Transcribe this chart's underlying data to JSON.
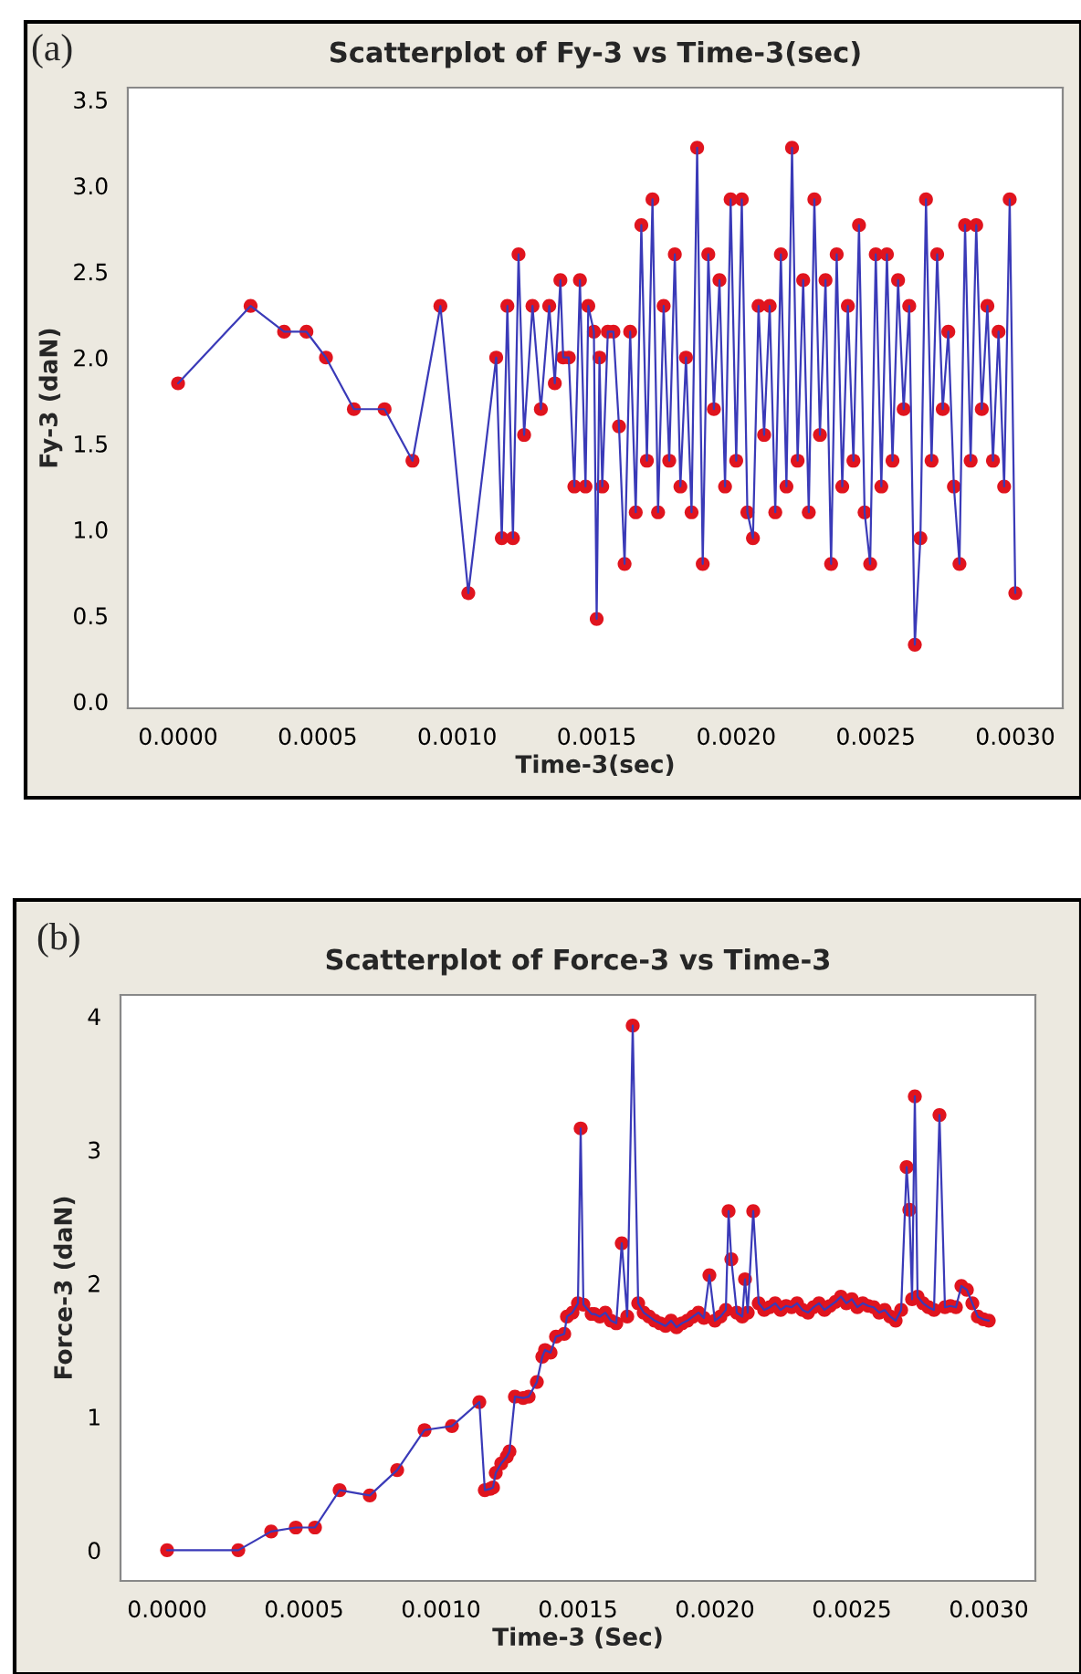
{
  "chart_data": [
    {
      "type": "line",
      "title": "Scatterplot of Fy-3 vs Time-3(sec)",
      "xlabel": "Time-3(sec)",
      "ylabel": "Fy-3 (daN)",
      "annotations": [
        "(a)"
      ],
      "x": [
        0,
        0.00026,
        0.00038,
        0.00046,
        0.00053,
        0.00063,
        0.00074,
        0.00084,
        0.00094,
        0.00104,
        0.00114,
        0.00116,
        0.00118,
        0.0012,
        0.00122,
        0.00124,
        0.00127,
        0.0013,
        0.00133,
        0.00135,
        0.00137,
        0.00138,
        0.0014,
        0.00142,
        0.00144,
        0.00146,
        0.00147,
        0.00149,
        0.0015,
        0.00151,
        0.00152,
        0.00154,
        0.00156,
        0.00158,
        0.0016,
        0.00162,
        0.00164,
        0.00166,
        0.00168,
        0.0017,
        0.00172,
        0.00174,
        0.00176,
        0.00178,
        0.0018,
        0.00182,
        0.00184,
        0.00186,
        0.00188,
        0.0019,
        0.00192,
        0.00194,
        0.00196,
        0.00198,
        0.002,
        0.00202,
        0.00204,
        0.00206,
        0.00208,
        0.0021,
        0.00212,
        0.00214,
        0.00216,
        0.00218,
        0.0022,
        0.00222,
        0.00224,
        0.00226,
        0.00228,
        0.0023,
        0.00232,
        0.00234,
        0.00236,
        0.00238,
        0.0024,
        0.00242,
        0.00244,
        0.00246,
        0.00248,
        0.0025,
        0.00252,
        0.00254,
        0.00256,
        0.00258,
        0.0026,
        0.00262,
        0.00264,
        0.00266,
        0.00268,
        0.0027,
        0.00272,
        0.00274,
        0.00276,
        0.00278,
        0.0028,
        0.00282,
        0.00284,
        0.00286,
        0.00288,
        0.0029,
        0.00292,
        0.00294,
        0.00296,
        0.00298,
        0.003
      ],
      "series": [
        {
          "type": "line",
          "color": "#3a3ab8",
          "marker": "none",
          "values": [
            1.85,
            2.3,
            2.15,
            2.15,
            2.0,
            1.7,
            1.7,
            1.4,
            2.3,
            0.63,
            2.0,
            0.95,
            2.3,
            0.95,
            2.6,
            1.55,
            2.3,
            1.7,
            2.3,
            1.85,
            2.45,
            2.0,
            2.0,
            1.25,
            2.45,
            1.25,
            2.3,
            2.15,
            0.48,
            2.0,
            1.25,
            2.15,
            2.15,
            1.6,
            0.8,
            2.15,
            1.1,
            2.77,
            1.4,
            2.92,
            1.1,
            2.3,
            1.4,
            2.6,
            1.25,
            2.0,
            1.1,
            3.22,
            0.8,
            2.6,
            1.7,
            2.45,
            1.25,
            2.92,
            1.4,
            2.92,
            1.1,
            0.95,
            2.3,
            1.55,
            2.3,
            1.1,
            2.6,
            1.25,
            3.22,
            1.4,
            2.45,
            1.1,
            2.92,
            1.55,
            2.45,
            0.8,
            2.6,
            1.25,
            2.3,
            1.4,
            2.77,
            1.1,
            0.8,
            2.6,
            1.25,
            2.6,
            1.4,
            2.45,
            1.7,
            2.3,
            0.33,
            0.95,
            2.92,
            1.4,
            2.6,
            1.7,
            2.15,
            1.25,
            0.8,
            2.77,
            1.4,
            2.77,
            1.7,
            2.3,
            1.4,
            2.15,
            1.25,
            2.92,
            0.63
          ]
        },
        {
          "type": "scatter",
          "color": "#e0141e",
          "marker": "circle",
          "values": [
            1.85,
            2.3,
            2.15,
            2.15,
            2.0,
            1.7,
            1.7,
            1.4,
            2.3,
            0.63,
            2.0,
            0.95,
            2.3,
            0.95,
            2.6,
            1.55,
            2.3,
            1.7,
            2.3,
            1.85,
            2.45,
            2.0,
            2.0,
            1.25,
            2.45,
            1.25,
            2.3,
            2.15,
            0.48,
            2.0,
            1.25,
            2.15,
            2.15,
            1.6,
            0.8,
            2.15,
            1.1,
            2.77,
            1.4,
            2.92,
            1.1,
            2.3,
            1.4,
            2.6,
            1.25,
            2.0,
            1.1,
            3.22,
            0.8,
            2.6,
            1.7,
            2.45,
            1.25,
            2.92,
            1.4,
            2.92,
            1.1,
            0.95,
            2.3,
            1.55,
            2.3,
            1.1,
            2.6,
            1.25,
            3.22,
            1.4,
            2.45,
            1.1,
            2.92,
            1.55,
            2.45,
            0.8,
            2.6,
            1.25,
            2.3,
            1.4,
            2.77,
            1.1,
            0.8,
            2.6,
            1.25,
            2.6,
            1.4,
            2.45,
            1.7,
            2.3,
            0.33,
            0.95,
            2.92,
            1.4,
            2.6,
            1.7,
            2.15,
            1.25,
            0.8,
            2.77,
            1.4,
            2.77,
            1.7,
            2.3,
            1.4,
            2.15,
            1.25,
            2.92,
            0.63
          ]
        }
      ],
      "xlim": [
        -0.00018,
        0.00317
      ],
      "ylim": [
        -0.04,
        3.57
      ],
      "xticks": [
        {
          "value": 0,
          "label": "0.0000"
        },
        {
          "value": 0.0005,
          "label": "0.0005"
        },
        {
          "value": 0.001,
          "label": "0.0010"
        },
        {
          "value": 0.0015,
          "label": "0.0015"
        },
        {
          "value": 0.002,
          "label": "0.0020"
        },
        {
          "value": 0.0025,
          "label": "0.0025"
        },
        {
          "value": 0.003,
          "label": "0.0030"
        }
      ],
      "yticks": [
        {
          "value": 0,
          "label": "0.0"
        },
        {
          "value": 0.5,
          "label": "0.5"
        },
        {
          "value": 1,
          "label": "1.0"
        },
        {
          "value": 1.5,
          "label": "1.5"
        },
        {
          "value": 2,
          "label": "2.0"
        },
        {
          "value": 2.5,
          "label": "2.5"
        },
        {
          "value": 3,
          "label": "3.0"
        },
        {
          "value": 3.5,
          "label": "3.5"
        }
      ],
      "grid": false,
      "legend": false
    },
    {
      "type": "line",
      "title": "Scatterplot of Force-3 vs Time-3",
      "xlabel": "Time-3 (Sec)",
      "ylabel": "Force-3 (daN)",
      "annotations": [
        "(b)"
      ],
      "x": [
        0,
        0.00026,
        0.00038,
        0.00047,
        0.00054,
        0.00063,
        0.00074,
        0.00084,
        0.00094,
        0.00104,
        0.00114,
        0.00116,
        0.00118,
        0.00119,
        0.0012,
        0.00122,
        0.00124,
        0.00125,
        0.00127,
        0.0013,
        0.00132,
        0.00135,
        0.00137,
        0.00138,
        0.0014,
        0.00142,
        0.00145,
        0.00146,
        0.00148,
        0.0015,
        0.00151,
        0.00152,
        0.00155,
        0.00156,
        0.00158,
        0.0016,
        0.00162,
        0.00164,
        0.00166,
        0.00168,
        0.0017,
        0.00172,
        0.00174,
        0.00176,
        0.00178,
        0.0018,
        0.00182,
        0.00184,
        0.00186,
        0.00188,
        0.0019,
        0.00192,
        0.00194,
        0.00196,
        0.00198,
        0.002,
        0.00202,
        0.00204,
        0.00205,
        0.00206,
        0.00208,
        0.0021,
        0.00211,
        0.00212,
        0.00214,
        0.00216,
        0.00218,
        0.0022,
        0.00222,
        0.00224,
        0.00226,
        0.00228,
        0.0023,
        0.00232,
        0.00234,
        0.00236,
        0.00238,
        0.0024,
        0.00242,
        0.00244,
        0.00246,
        0.00248,
        0.0025,
        0.00252,
        0.00254,
        0.00256,
        0.00258,
        0.0026,
        0.00262,
        0.00264,
        0.00266,
        0.00268,
        0.0027,
        0.00271,
        0.00272,
        0.00273,
        0.00274,
        0.00276,
        0.00278,
        0.0028,
        0.00282,
        0.00284,
        0.00286,
        0.00288,
        0.0029,
        0.00292,
        0.00294,
        0.00296,
        0.00298,
        0.003
      ],
      "series": [
        {
          "type": "line",
          "color": "#3a3ab8",
          "marker": "none",
          "values": [
            0,
            0,
            0.14,
            0.17,
            0.17,
            0.45,
            0.41,
            0.6,
            0.9,
            0.93,
            1.11,
            0.45,
            0.46,
            0.47,
            0.58,
            0.65,
            0.7,
            0.74,
            1.15,
            1.14,
            1.15,
            1.26,
            1.45,
            1.5,
            1.48,
            1.6,
            1.62,
            1.75,
            1.78,
            1.85,
            3.16,
            1.84,
            1.77,
            1.77,
            1.75,
            1.78,
            1.72,
            1.7,
            2.3,
            1.75,
            3.93,
            1.85,
            1.78,
            1.75,
            1.72,
            1.7,
            1.68,
            1.72,
            1.67,
            1.7,
            1.72,
            1.75,
            1.78,
            1.74,
            2.06,
            1.72,
            1.75,
            1.8,
            2.54,
            2.18,
            1.78,
            1.75,
            2.03,
            1.78,
            2.54,
            1.85,
            1.8,
            1.82,
            1.85,
            1.8,
            1.83,
            1.82,
            1.85,
            1.8,
            1.78,
            1.82,
            1.85,
            1.8,
            1.83,
            1.86,
            1.9,
            1.85,
            1.88,
            1.82,
            1.85,
            1.83,
            1.82,
            1.78,
            1.8,
            1.75,
            1.72,
            1.8,
            2.87,
            2.55,
            1.88,
            3.4,
            1.9,
            1.85,
            1.82,
            1.8,
            3.26,
            1.82,
            1.83,
            1.82,
            1.98,
            1.95,
            1.85,
            1.75,
            1.73,
            1.72
          ]
        },
        {
          "type": "scatter",
          "color": "#e0141e",
          "marker": "circle",
          "values": [
            0,
            0,
            0.14,
            0.17,
            0.17,
            0.45,
            0.41,
            0.6,
            0.9,
            0.93,
            1.11,
            0.45,
            0.46,
            0.47,
            0.58,
            0.65,
            0.7,
            0.74,
            1.15,
            1.14,
            1.15,
            1.26,
            1.45,
            1.5,
            1.48,
            1.6,
            1.62,
            1.75,
            1.78,
            1.85,
            3.16,
            1.84,
            1.77,
            1.77,
            1.75,
            1.78,
            1.72,
            1.7,
            2.3,
            1.75,
            3.93,
            1.85,
            1.78,
            1.75,
            1.72,
            1.7,
            1.68,
            1.72,
            1.67,
            1.7,
            1.72,
            1.75,
            1.78,
            1.74,
            2.06,
            1.72,
            1.75,
            1.8,
            2.54,
            2.18,
            1.78,
            1.75,
            2.03,
            1.78,
            2.54,
            1.85,
            1.8,
            1.82,
            1.85,
            1.8,
            1.83,
            1.82,
            1.85,
            1.8,
            1.78,
            1.82,
            1.85,
            1.8,
            1.83,
            1.86,
            1.9,
            1.85,
            1.88,
            1.82,
            1.85,
            1.83,
            1.82,
            1.78,
            1.8,
            1.75,
            1.72,
            1.8,
            2.87,
            2.55,
            1.88,
            3.4,
            1.9,
            1.85,
            1.82,
            1.8,
            3.26,
            1.82,
            1.83,
            1.82,
            1.98,
            1.95,
            1.85,
            1.75,
            1.73,
            1.72
          ]
        }
      ],
      "xlim": [
        -0.00017,
        0.00317
      ],
      "ylim": [
        -0.23,
        4.16
      ],
      "xticks": [
        {
          "value": 0,
          "label": "0.0000"
        },
        {
          "value": 0.0005,
          "label": "0.0005"
        },
        {
          "value": 0.001,
          "label": "0.0010"
        },
        {
          "value": 0.0015,
          "label": "0.0015"
        },
        {
          "value": 0.002,
          "label": "0.0020"
        },
        {
          "value": 0.0025,
          "label": "0.0025"
        },
        {
          "value": 0.003,
          "label": "0.0030"
        }
      ],
      "yticks": [
        0,
        1,
        2,
        3,
        4
      ],
      "grid": false,
      "legend": false
    }
  ]
}
